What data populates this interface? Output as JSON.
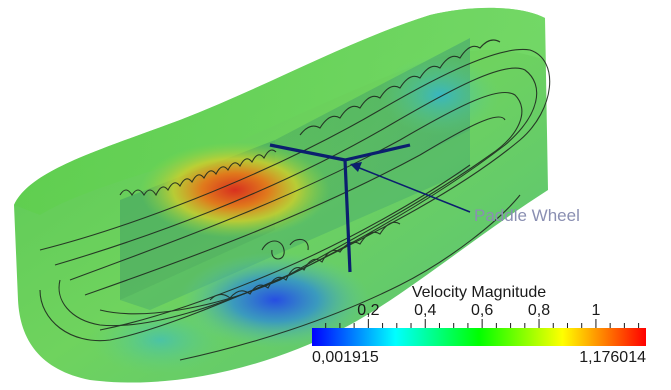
{
  "annotation": {
    "label": "Paddle Wheel"
  },
  "colorbar": {
    "title": "Velocity Magnitude",
    "min_label": "0,001915",
    "max_label": "1,176014",
    "min": 0.001915,
    "max": 1.176014,
    "ticks": [
      {
        "value": 0.2,
        "label": "0,2"
      },
      {
        "value": 0.4,
        "label": "0,4"
      },
      {
        "value": 0.6,
        "label": "0,6"
      },
      {
        "value": 0.8,
        "label": "0,8"
      },
      {
        "value": 1.0,
        "label": "1"
      }
    ],
    "colors": [
      "#0000ff",
      "#00ffff",
      "#00ff00",
      "#ffff00",
      "#ff0000"
    ]
  },
  "colors": {
    "tank_green": "#6fd35a",
    "paddle_blue": "#0b1f6e",
    "streamline": "#1f2a1f"
  }
}
